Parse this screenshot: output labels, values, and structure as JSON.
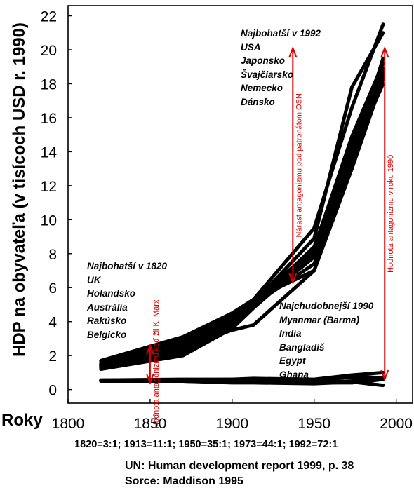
{
  "chart_data": {
    "type": "line",
    "title": "",
    "xlabel": "Roky",
    "ylabel": "HDP na obyvateľa (v tisícoch USD r. 1990)",
    "xlim": [
      1800,
      2010
    ],
    "ylim": [
      -0.8,
      22.6
    ],
    "x_ticks": [
      1800,
      1850,
      1900,
      1950,
      2000
    ],
    "y_ticks": [
      0,
      2,
      4,
      6,
      8,
      10,
      12,
      14,
      16,
      18,
      20,
      22
    ],
    "grid": false,
    "series": [
      {
        "name": "USA",
        "x": [
          1820,
          1870,
          1900,
          1913,
          1950,
          1973,
          1992
        ],
        "y": [
          1.3,
          2.4,
          4.1,
          5.3,
          9.5,
          16.6,
          21.5
        ]
      },
      {
        "name": "Japonsko",
        "x": [
          1820,
          1870,
          1900,
          1913,
          1950,
          1973,
          1992
        ],
        "y": [
          1.2,
          2.5,
          3.5,
          3.8,
          7.0,
          13.5,
          19.5
        ]
      },
      {
        "name": "Švajčiarsko",
        "x": [
          1820,
          1870,
          1900,
          1913,
          1950,
          1973,
          1992
        ],
        "y": [
          1.5,
          2.6,
          4.3,
          5.1,
          8.9,
          17.8,
          21.0
        ]
      },
      {
        "name": "Nemecko",
        "x": [
          1820,
          1870,
          1900,
          1913,
          1950,
          1973,
          1992
        ],
        "y": [
          1.2,
          2.0,
          3.6,
          4.8,
          7.9,
          13.8,
          18.0
        ]
      },
      {
        "name": "Dánsko",
        "x": [
          1820,
          1870,
          1900,
          1913,
          1950,
          1973,
          1992
        ],
        "y": [
          1.4,
          2.3,
          3.9,
          5.0,
          8.4,
          14.6,
          18.8
        ]
      },
      {
        "name": "UK",
        "x": [
          1820,
          1870,
          1900,
          1913,
          1950,
          1973,
          1992
        ],
        "y": [
          1.7,
          3.1,
          4.5,
          5.3,
          7.0,
          13.0,
          18.3
        ]
      },
      {
        "name": "Holandsko",
        "x": [
          1820,
          1870,
          1900,
          1913,
          1950,
          1973,
          1992
        ],
        "y": [
          1.6,
          2.8,
          4.2,
          5.2,
          8.3,
          14.9,
          19.2
        ]
      },
      {
        "name": "Austrália",
        "x": [
          1820,
          1870,
          1900,
          1913,
          1950,
          1973,
          1992
        ],
        "y": [
          1.5,
          2.9,
          4.3,
          5.0,
          7.4,
          13.4,
          18.6
        ]
      },
      {
        "name": "Rakúsko",
        "x": [
          1820,
          1870,
          1900,
          1913,
          1950,
          1973,
          1992
        ],
        "y": [
          1.3,
          2.2,
          3.8,
          4.9,
          7.8,
          14.3,
          18.9
        ]
      },
      {
        "name": "Belgicko",
        "x": [
          1820,
          1870,
          1900,
          1913,
          1950,
          1973,
          1992
        ],
        "y": [
          1.4,
          2.6,
          4.0,
          4.9,
          8.1,
          14.1,
          18.5
        ]
      },
      {
        "name": "Myanmar (Barma)",
        "x": [
          1820,
          1870,
          1900,
          1913,
          1950,
          1973,
          1992
        ],
        "y": [
          0.5,
          0.5,
          0.45,
          0.45,
          0.4,
          0.5,
          0.7
        ]
      },
      {
        "name": "India",
        "x": [
          1820,
          1870,
          1900,
          1913,
          1950,
          1973,
          1992
        ],
        "y": [
          0.55,
          0.55,
          0.6,
          0.65,
          0.6,
          0.85,
          1.0
        ]
      },
      {
        "name": "Bangladíš",
        "x": [
          1820,
          1870,
          1900,
          1913,
          1950,
          1973,
          1992
        ],
        "y": [
          0.5,
          0.5,
          0.48,
          0.48,
          0.4,
          0.4,
          0.6
        ]
      },
      {
        "name": "Egypt",
        "x": [
          1820,
          1870,
          1900,
          1913,
          1950,
          1973,
          1992
        ],
        "y": [
          0.55,
          0.6,
          0.6,
          0.5,
          0.5,
          0.75,
          0.7
        ]
      },
      {
        "name": "Ghana",
        "x": [
          1820,
          1870,
          1900,
          1913,
          1950,
          1973,
          1992
        ],
        "y": [
          0.5,
          0.5,
          0.4,
          0.4,
          0.35,
          0.45,
          0.25
        ]
      }
    ],
    "annotations": {
      "rich_1992": {
        "title": "Najbohatší v 1992",
        "items": [
          "USA",
          "Japonsko",
          "Švajčiarsko",
          "Nemecko",
          "Dánsko"
        ]
      },
      "rich_1820": {
        "title": "Najbohatší v 1820",
        "items": [
          "UK",
          "Holandsko",
          "Austrália",
          "Rakúsko",
          "Belgicko"
        ]
      },
      "poor_1990": {
        "title": "Najchudobnejší 1990",
        "items": [
          "Myanmar (Barma)",
          "India",
          "Bangladíš",
          "Egypt",
          "Ghana"
        ]
      },
      "arrows": [
        {
          "label": "Hodnota antagonizmu keď žil K. Marx",
          "x": 1850,
          "y_from": 0.4,
          "y_to": 2.6
        },
        {
          "label": "Nárast antagonizmu pod patronátom OSN",
          "x": 1937,
          "y_from": 6.3,
          "y_to": 20.1
        },
        {
          "label": "Hodnota antagonizmu v roku 1990",
          "x": 1993,
          "y_from": 0.6,
          "y_to": 20.1
        }
      ],
      "arrow_color": "#dd0000"
    },
    "ratios": "1820=3:1; 1913=11:1; 1950=35:1; 1973=44:1; 1992=72:1",
    "source_lines": [
      "UN: Human development report 1999, p. 38",
      "Sorce: Maddison 1995"
    ]
  }
}
